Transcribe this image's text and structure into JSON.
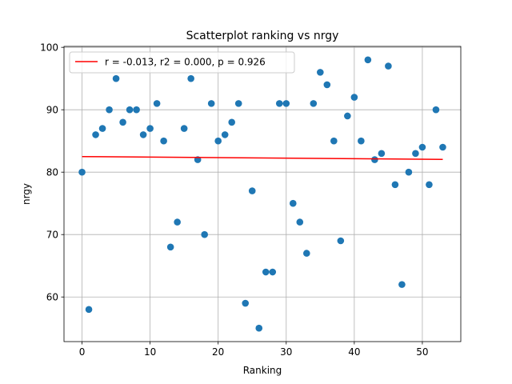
{
  "chart_data": {
    "type": "scatter",
    "title": "Scatterplot ranking vs nrgy",
    "xlabel": "Ranking",
    "ylabel": "nrgy",
    "xlim": [
      -2.65,
      55.65
    ],
    "ylim": [
      52.85,
      100.15
    ],
    "xticks": [
      0,
      10,
      20,
      30,
      40,
      50
    ],
    "yticks": [
      60,
      70,
      80,
      90,
      100
    ],
    "grid": true,
    "legend_position": "upper-left",
    "series": [
      {
        "name": "",
        "color": "#1f77b4",
        "x": [
          0,
          1,
          2,
          3,
          4,
          5,
          6,
          7,
          8,
          9,
          10,
          11,
          12,
          13,
          14,
          15,
          16,
          17,
          18,
          19,
          20,
          21,
          22,
          23,
          24,
          25,
          26,
          27,
          28,
          29,
          30,
          31,
          32,
          33,
          34,
          35,
          36,
          37,
          38,
          39,
          40,
          41,
          42,
          43,
          44,
          45,
          46,
          47,
          48,
          49,
          50,
          51,
          52,
          53
        ],
        "y": [
          80,
          58,
          86,
          87,
          90,
          95,
          88,
          90,
          90,
          86,
          87,
          91,
          85,
          68,
          72,
          87,
          95,
          82,
          70,
          91,
          85,
          86,
          88,
          91,
          59,
          77,
          55,
          64,
          64,
          91,
          91,
          75,
          72,
          67,
          91,
          96,
          94,
          85,
          69,
          89,
          92,
          85,
          98,
          82,
          83,
          97,
          78,
          62,
          80,
          83,
          84,
          78,
          90,
          84
        ]
      }
    ],
    "fit_line": {
      "name": "r = -0.013, r2 = 0.000, p = 0.926",
      "color": "#ff0000",
      "x": [
        0,
        53
      ],
      "y": [
        82.5,
        82.05
      ]
    }
  }
}
